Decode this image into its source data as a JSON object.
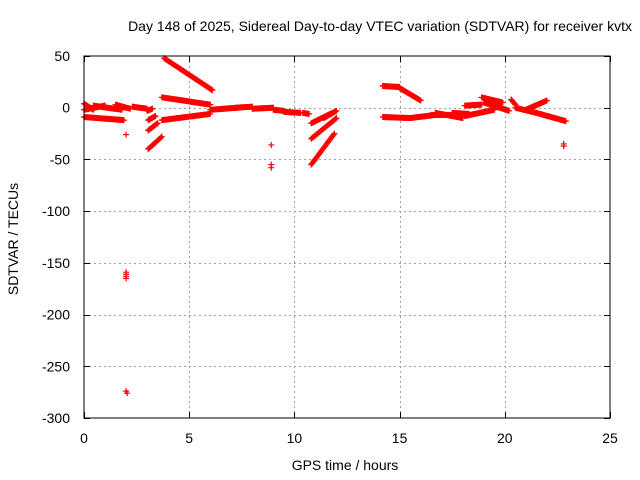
{
  "chart_data": {
    "type": "scatter",
    "title": "Day 148 of 2025, Sidereal Day-to-day VTEC variation (SDTVAR) for receiver kvtx",
    "xlabel": "GPS time / hours",
    "ylabel": "SDTVAR / TECUs",
    "xlim": [
      0,
      25
    ],
    "ylim": [
      -300,
      50
    ],
    "x_ticks": [
      0,
      5,
      10,
      15,
      20,
      25
    ],
    "y_ticks": [
      -300,
      -250,
      -200,
      -150,
      -100,
      -50,
      0,
      50
    ],
    "grid": true,
    "marker": "plus",
    "color": "#ff0000",
    "segments": [
      {
        "x0": 0.0,
        "x1": 0.45,
        "y0": 4,
        "y1": -2
      },
      {
        "x0": 0.0,
        "x1": 1.0,
        "y0": -2,
        "y1": 2
      },
      {
        "x0": 0.45,
        "x1": 1.8,
        "y0": 2,
        "y1": -2
      },
      {
        "x0": 0.0,
        "x1": 1.9,
        "y0": -9,
        "y1": -12
      },
      {
        "x0": 1.5,
        "x1": 2.2,
        "y0": 3,
        "y1": -1
      },
      {
        "x0": 2.3,
        "x1": 3.0,
        "y0": 1,
        "y1": -1
      },
      {
        "x0": 3.0,
        "x1": 3.25,
        "y0": -3,
        "y1": -1
      },
      {
        "x0": 3.05,
        "x1": 3.7,
        "y0": -40,
        "y1": -28
      },
      {
        "x0": 3.05,
        "x1": 3.5,
        "y0": -22,
        "y1": -15
      },
      {
        "x0": 3.05,
        "x1": 3.4,
        "y0": -12,
        "y1": -8
      },
      {
        "x0": 3.8,
        "x1": 6.1,
        "y0": 48,
        "y1": 17
      },
      {
        "x0": 3.7,
        "x1": 6.0,
        "y0": 10,
        "y1": 3
      },
      {
        "x0": 3.7,
        "x1": 6.0,
        "y0": -12,
        "y1": -6
      },
      {
        "x0": 6.0,
        "x1": 7.3,
        "y0": -2,
        "y1": 0
      },
      {
        "x0": 7.2,
        "x1": 8.0,
        "y0": 0,
        "y1": 1
      },
      {
        "x0": 8.0,
        "x1": 9.0,
        "y0": -1,
        "y1": 0
      },
      {
        "x0": 9.0,
        "x1": 9.5,
        "y0": -2,
        "y1": -3
      },
      {
        "x0": 9.5,
        "x1": 10.3,
        "y0": -4,
        "y1": -5
      },
      {
        "x0": 10.4,
        "x1": 10.7,
        "y0": -5,
        "y1": -6
      },
      {
        "x0": 10.8,
        "x1": 11.9,
        "y0": -55,
        "y1": -25
      },
      {
        "x0": 10.8,
        "x1": 12.0,
        "y0": -30,
        "y1": -10
      },
      {
        "x0": 10.8,
        "x1": 11.8,
        "y0": -15,
        "y1": -5
      },
      {
        "x0": 11.4,
        "x1": 12.0,
        "y0": -10,
        "y1": -3
      },
      {
        "x0": 14.2,
        "x1": 15.0,
        "y0": 21,
        "y1": 20
      },
      {
        "x0": 15.0,
        "x1": 16.0,
        "y0": 19,
        "y1": 7
      },
      {
        "x0": 14.2,
        "x1": 15.5,
        "y0": -9,
        "y1": -10
      },
      {
        "x0": 15.5,
        "x1": 16.7,
        "y0": -10,
        "y1": -7
      },
      {
        "x0": 16.5,
        "x1": 17.5,
        "y0": -7,
        "y1": -7
      },
      {
        "x0": 16.7,
        "x1": 18.0,
        "y0": -5,
        "y1": -10
      },
      {
        "x0": 17.5,
        "x1": 18.3,
        "y0": -5,
        "y1": -6
      },
      {
        "x0": 18.1,
        "x1": 18.9,
        "y0": 2,
        "y1": 3
      },
      {
        "x0": 18.1,
        "x1": 19.5,
        "y0": -8,
        "y1": -2
      },
      {
        "x0": 18.9,
        "x1": 19.9,
        "y0": 10,
        "y1": 5
      },
      {
        "x0": 19.0,
        "x1": 20.2,
        "y0": 5,
        "y1": -3
      },
      {
        "x0": 20.3,
        "x1": 20.5,
        "y0": 8,
        "y1": 3
      },
      {
        "x0": 20.5,
        "x1": 21.5,
        "y0": 0,
        "y1": -5
      },
      {
        "x0": 21.0,
        "x1": 22.0,
        "y0": -2,
        "y1": 7
      },
      {
        "x0": 21.5,
        "x1": 22.9,
        "y0": -5,
        "y1": -13
      }
    ],
    "points": [
      {
        "x": 2.0,
        "y": -26
      },
      {
        "x": 2.0,
        "y": -159
      },
      {
        "x": 2.0,
        "y": -161
      },
      {
        "x": 2.0,
        "y": -163
      },
      {
        "x": 2.0,
        "y": -165
      },
      {
        "x": 2.0,
        "y": -274
      },
      {
        "x": 2.05,
        "y": -276
      },
      {
        "x": 8.9,
        "y": -36
      },
      {
        "x": 8.9,
        "y": -55
      },
      {
        "x": 8.9,
        "y": -58
      },
      {
        "x": 14.2,
        "y": 21
      },
      {
        "x": 22.8,
        "y": -35
      },
      {
        "x": 22.8,
        "y": -37
      }
    ]
  }
}
